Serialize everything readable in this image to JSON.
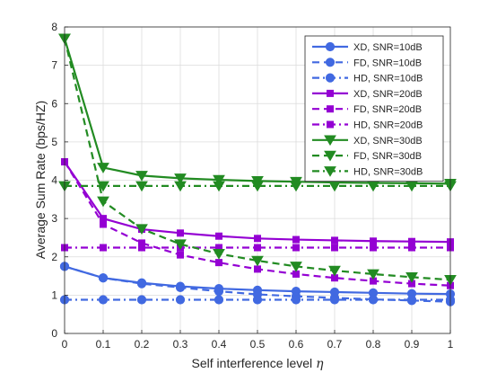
{
  "chart_data": {
    "type": "line",
    "title": "",
    "xlabel": "Self interference level",
    "xlabel_symbol": "η",
    "ylabel": "Average Sum Rate (bps/HZ)",
    "xlim": [
      0,
      1
    ],
    "ylim": [
      0,
      8
    ],
    "x_ticks": [
      "0",
      "0.1",
      "0.2",
      "0.3",
      "0.4",
      "0.5",
      "0.6",
      "0.7",
      "0.8",
      "0.9",
      "1"
    ],
    "y_ticks": [
      "0",
      "1",
      "2",
      "3",
      "4",
      "5",
      "6",
      "7",
      "8"
    ],
    "grid": true,
    "legend_position": "top-right",
    "x": [
      0,
      0.1,
      0.2,
      0.3,
      0.4,
      0.5,
      0.6,
      0.7,
      0.8,
      0.9,
      1.0
    ],
    "series": [
      {
        "name": "XD, SNR=10dB",
        "color": "#4169E1",
        "dash": "solid",
        "marker": "circle",
        "values": [
          1.75,
          1.45,
          1.32,
          1.23,
          1.17,
          1.13,
          1.1,
          1.08,
          1.06,
          1.04,
          1.03
        ]
      },
      {
        "name": "FD, SNR=10dB",
        "color": "#4169E1",
        "dash": "dashed",
        "marker": "circle",
        "values": [
          1.75,
          1.45,
          1.3,
          1.2,
          1.1,
          1.02,
          0.97,
          0.93,
          0.89,
          0.86,
          0.83
        ]
      },
      {
        "name": "HD, SNR=10dB",
        "color": "#4169E1",
        "dash": "dashdot",
        "marker": "circle",
        "values": [
          0.88,
          0.88,
          0.88,
          0.88,
          0.88,
          0.88,
          0.88,
          0.88,
          0.88,
          0.88,
          0.88
        ]
      },
      {
        "name": "XD, SNR=20dB",
        "color": "#9400D3",
        "dash": "solid",
        "marker": "square",
        "values": [
          4.48,
          3.0,
          2.72,
          2.62,
          2.54,
          2.48,
          2.45,
          2.43,
          2.41,
          2.4,
          2.39
        ]
      },
      {
        "name": "FD, SNR=20dB",
        "color": "#9400D3",
        "dash": "dashed",
        "marker": "square",
        "values": [
          4.48,
          2.85,
          2.36,
          2.05,
          1.85,
          1.68,
          1.55,
          1.45,
          1.37,
          1.3,
          1.25
        ]
      },
      {
        "name": "HD, SNR=20dB",
        "color": "#9400D3",
        "dash": "dashdot",
        "marker": "square",
        "values": [
          2.24,
          2.24,
          2.24,
          2.24,
          2.24,
          2.24,
          2.24,
          2.24,
          2.24,
          2.24,
          2.24
        ]
      },
      {
        "name": "XD, SNR=30dB",
        "color": "#228B22",
        "dash": "solid",
        "marker": "triangle-down",
        "values": [
          7.7,
          4.33,
          4.12,
          4.05,
          4.01,
          3.98,
          3.96,
          3.94,
          3.93,
          3.92,
          3.91
        ]
      },
      {
        "name": "FD, SNR=30dB",
        "color": "#228B22",
        "dash": "dashed",
        "marker": "triangle-down",
        "values": [
          7.7,
          3.45,
          2.73,
          2.33,
          2.08,
          1.9,
          1.75,
          1.64,
          1.55,
          1.47,
          1.4
        ]
      },
      {
        "name": "HD, SNR=30dB",
        "color": "#228B22",
        "dash": "dashdot",
        "marker": "triangle-down",
        "values": [
          3.85,
          3.85,
          3.85,
          3.85,
          3.85,
          3.85,
          3.85,
          3.85,
          3.85,
          3.85,
          3.85
        ]
      }
    ]
  }
}
